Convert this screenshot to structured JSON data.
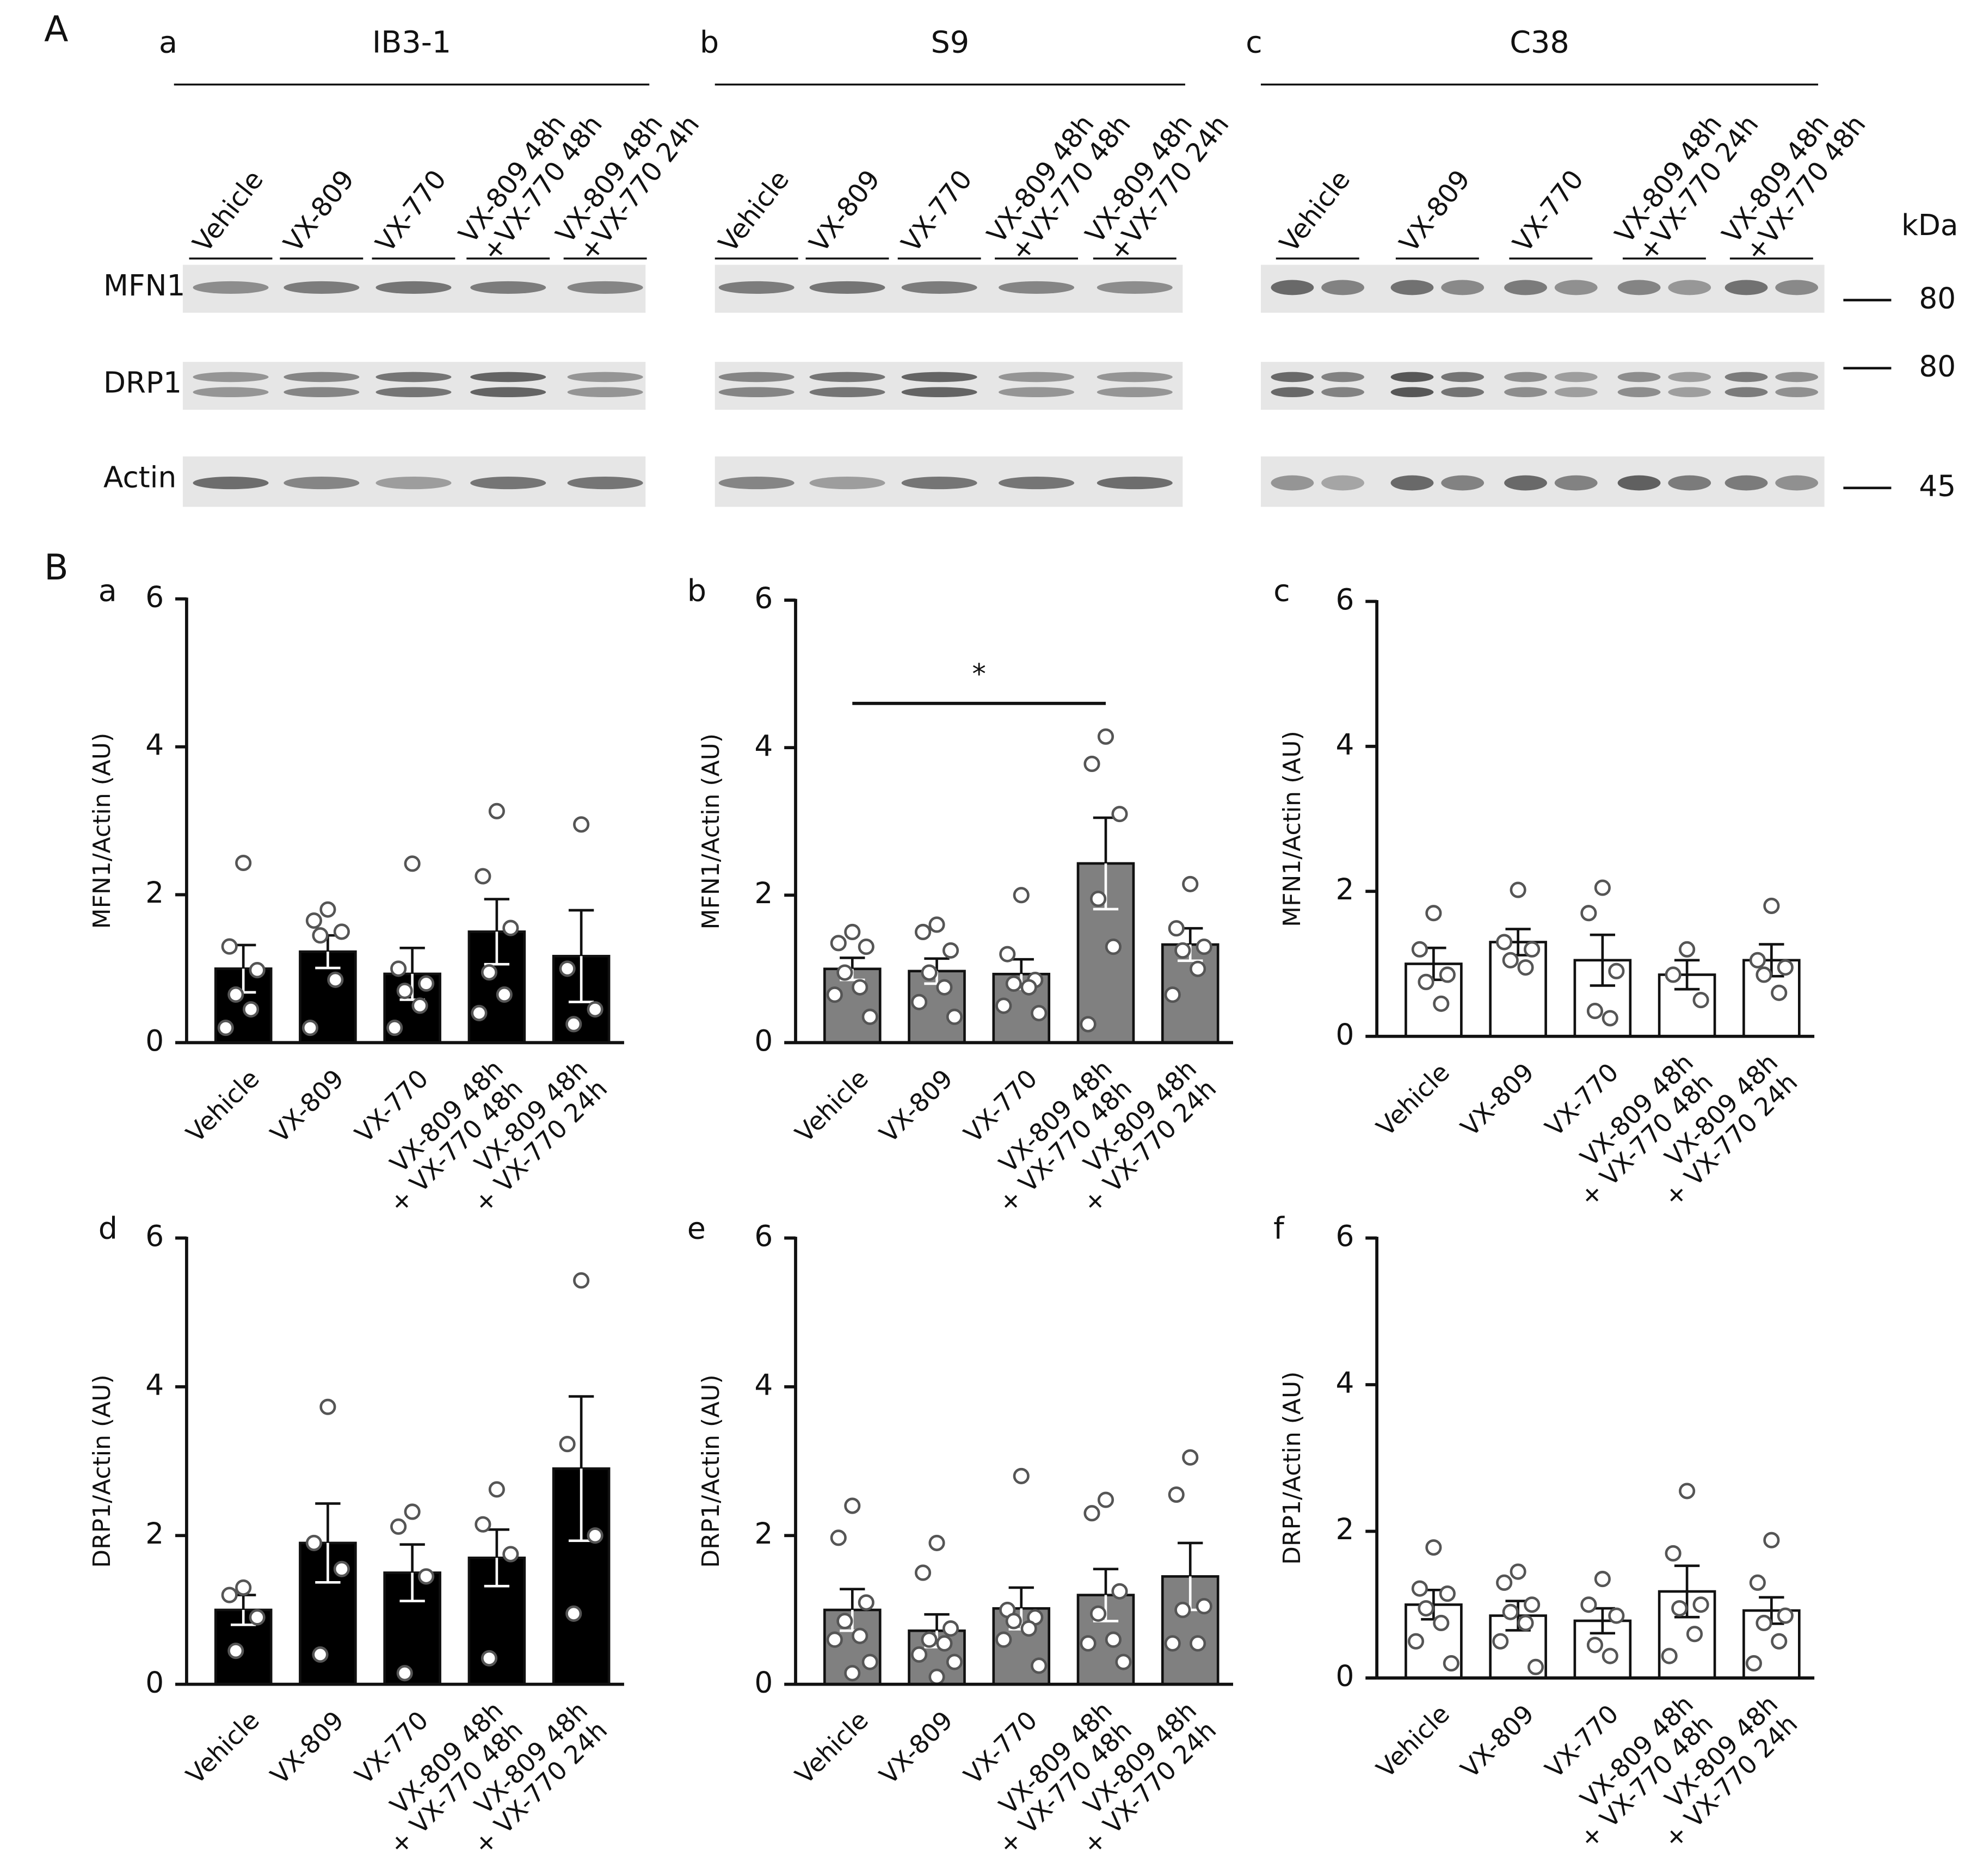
{
  "panel_a": {
    "label": "A",
    "proteins": [
      "MFN1",
      "DRP1",
      "Actin"
    ],
    "kda_label": "kDa",
    "markers": [
      80,
      80,
      45
    ],
    "blots": [
      {
        "letter": "a",
        "title": "IB3-1",
        "lanes": [
          "Vehicle",
          "VX-809",
          "VX-770",
          "VX-809 48h\n+VX-770 48h",
          "VX-809 48h\n+VX-770 24h"
        ]
      },
      {
        "letter": "b",
        "title": "S9",
        "lanes": [
          "Vehicle",
          "VX-809",
          "VX-770",
          "VX-809 48h\n+VX-770 48h",
          "VX-809 48h\n+VX-770 24h"
        ]
      },
      {
        "letter": "c",
        "title": "C38",
        "lanes": [
          "Vehicle",
          "VX-809",
          "VX-770",
          "VX-809 48h\n+VX-770 24h",
          "VX-809 48h\n+VX-770 48h"
        ]
      }
    ]
  },
  "panel_b": {
    "label": "B"
  },
  "chart_data": [
    {
      "type": "bar",
      "panel": "a",
      "ylabel": "MFN1/Actin (AU)",
      "color": "#000000",
      "point_color": "#ffffff",
      "categories": [
        "Vehicle",
        "VX-809",
        "VX-770",
        "VX-809 48h\n+ VX-770 48h",
        "VX-809 48h\n+ VX-770 24h"
      ],
      "values": [
        1.0,
        1.23,
        0.93,
        1.5,
        1.17
      ],
      "errors": [
        0.32,
        0.22,
        0.35,
        0.44,
        0.62
      ],
      "points": [
        [
          2.43,
          1.3,
          0.98,
          0.65,
          0.45,
          0.2
        ],
        [
          1.8,
          1.65,
          1.5,
          1.45,
          0.85,
          0.2
        ],
        [
          2.42,
          1.0,
          0.8,
          0.7,
          0.5,
          0.2
        ],
        [
          3.13,
          2.25,
          1.55,
          0.95,
          0.65,
          0.4
        ],
        [
          2.95,
          1.0,
          0.45,
          0.25
        ]
      ],
      "ylim": [
        0,
        6
      ],
      "yticks": [
        0,
        2,
        4,
        6
      ]
    },
    {
      "type": "bar",
      "panel": "b",
      "ylabel": "MFN1/Actin (AU)",
      "color": "#808080",
      "point_color": "#ffffff",
      "categories": [
        "Vehicle",
        "VX-809",
        "VX-770",
        "VX-809 48h\n+ VX-770 48h",
        "VX-809 48h\n+ VX-770 24h"
      ],
      "values": [
        1.0,
        0.97,
        0.93,
        2.43,
        1.33
      ],
      "errors": [
        0.15,
        0.17,
        0.2,
        0.62,
        0.22
      ],
      "points": [
        [
          1.5,
          1.35,
          1.3,
          0.95,
          0.75,
          0.65,
          0.35
        ],
        [
          1.6,
          1.5,
          1.25,
          0.95,
          0.75,
          0.55,
          0.35
        ],
        [
          2.0,
          1.2,
          0.85,
          0.8,
          0.75,
          0.5,
          0.4
        ],
        [
          4.15,
          3.78,
          3.1,
          1.95,
          1.3,
          0.25
        ],
        [
          2.15,
          1.55,
          1.3,
          1.25,
          1.0,
          0.65
        ]
      ],
      "significance": {
        "label": "*",
        "y": 4.6,
        "from": 0,
        "to": 3
      },
      "ylim": [
        0,
        6
      ],
      "yticks": [
        0,
        2,
        4,
        6
      ]
    },
    {
      "type": "bar",
      "panel": "c",
      "ylabel": "MFN1/Actin (AU)",
      "color": "#ffffff",
      "point_color": "#ffffff",
      "categories": [
        "Vehicle",
        "VX-809",
        "VX-770",
        "VX-809 48h\n+ VX-770 48h",
        "VX-809 48h\n+ VX-770 24h"
      ],
      "values": [
        1.0,
        1.3,
        1.05,
        0.85,
        1.05
      ],
      "errors": [
        0.22,
        0.18,
        0.35,
        0.2,
        0.22
      ],
      "points": [
        [
          1.7,
          1.2,
          0.85,
          0.75,
          0.45
        ],
        [
          2.02,
          1.3,
          1.2,
          1.05,
          0.95
        ],
        [
          2.05,
          1.7,
          0.9,
          0.35,
          0.25
        ],
        [
          1.2,
          0.85,
          0.5
        ],
        [
          1.8,
          1.05,
          0.95,
          0.85,
          0.6
        ]
      ],
      "ylim": [
        0,
        6
      ],
      "yticks": [
        0,
        2,
        4,
        6
      ]
    },
    {
      "type": "bar",
      "panel": "d",
      "ylabel": "DRP1/Actin (AU)",
      "color": "#000000",
      "point_color": "#ffffff",
      "categories": [
        "Vehicle",
        "VX-809",
        "VX-770",
        "VX-809 48h\n+ VX-770 48h",
        "VX-809 48h\n+ VX-770 24h"
      ],
      "values": [
        1.0,
        1.9,
        1.5,
        1.7,
        2.9
      ],
      "errors": [
        0.2,
        0.53,
        0.38,
        0.38,
        0.97
      ],
      "points": [
        [
          1.3,
          1.2,
          0.9,
          0.45
        ],
        [
          3.73,
          1.9,
          1.55,
          0.4
        ],
        [
          2.32,
          2.12,
          1.45,
          0.15
        ],
        [
          2.62,
          2.15,
          1.75,
          0.35
        ],
        [
          5.43,
          3.23,
          2.0,
          0.95
        ]
      ],
      "ylim": [
        0,
        6
      ],
      "yticks": [
        0,
        2,
        4,
        6
      ]
    },
    {
      "type": "bar",
      "panel": "e",
      "ylabel": "DRP1/Actin (AU)",
      "color": "#808080",
      "point_color": "#ffffff",
      "categories": [
        "Vehicle",
        "VX-809",
        "VX-770",
        "VX-809 48h\n+ VX-770 48h",
        "VX-809 48h\n+ VX-770 24h"
      ],
      "values": [
        1.0,
        0.72,
        1.02,
        1.2,
        1.45
      ],
      "errors": [
        0.28,
        0.22,
        0.28,
        0.35,
        0.45
      ],
      "points": [
        [
          2.4,
          1.97,
          1.1,
          0.85,
          0.65,
          0.6,
          0.3,
          0.15
        ],
        [
          1.9,
          1.5,
          0.75,
          0.6,
          0.55,
          0.4,
          0.3,
          0.1
        ],
        [
          2.8,
          1.0,
          0.9,
          0.85,
          0.75,
          0.6,
          0.25
        ],
        [
          2.48,
          2.3,
          1.25,
          0.95,
          0.6,
          0.55,
          0.3
        ],
        [
          3.05,
          2.55,
          1.05,
          1.0,
          0.55,
          0.55
        ]
      ],
      "ylim": [
        0,
        6
      ],
      "yticks": [
        0,
        2,
        4,
        6
      ]
    },
    {
      "type": "bar",
      "panel": "f",
      "ylabel": "DRP1/Actin (AU)",
      "color": "#ffffff",
      "point_color": "#ffffff",
      "categories": [
        "Vehicle",
        "VX-809",
        "VX-770",
        "VX-809 48h\n+ VX-770 48h",
        "VX-809 48h\n+ VX-770 24h"
      ],
      "values": [
        1.0,
        0.85,
        0.78,
        1.18,
        0.92
      ],
      "errors": [
        0.2,
        0.2,
        0.17,
        0.35,
        0.18
      ],
      "points": [
        [
          1.78,
          1.22,
          1.15,
          0.95,
          0.75,
          0.5,
          0.2
        ],
        [
          1.45,
          1.3,
          1.0,
          0.9,
          0.75,
          0.5,
          0.15
        ],
        [
          1.35,
          1.0,
          0.85,
          0.45,
          0.3
        ],
        [
          2.55,
          1.7,
          1.0,
          0.95,
          0.6,
          0.3
        ],
        [
          1.88,
          1.3,
          0.85,
          0.75,
          0.5,
          0.2
        ]
      ],
      "ylim": [
        0,
        6
      ],
      "yticks": [
        0,
        2,
        4,
        6
      ]
    }
  ]
}
